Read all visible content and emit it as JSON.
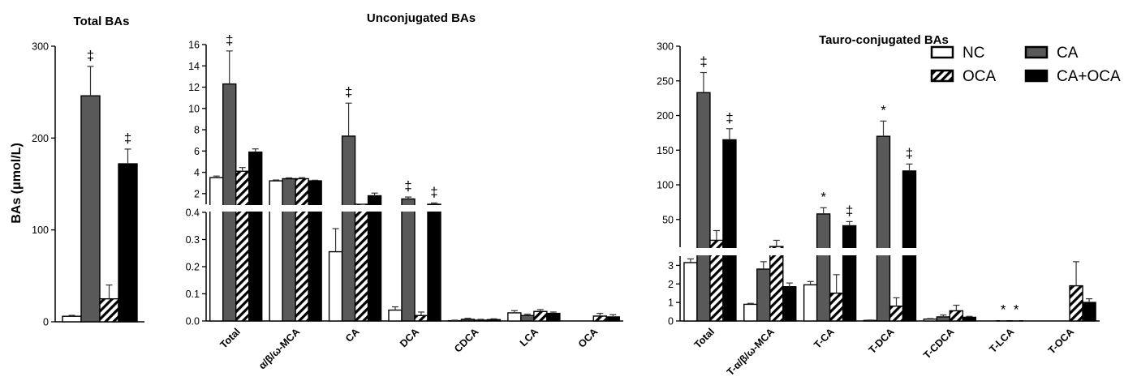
{
  "colors": {
    "NC": "#ffffff",
    "OCA": "hatch",
    "CA": "#595959",
    "CA+OCA": "#000000"
  },
  "legend": {
    "items": [
      "NC",
      "CA",
      "OCA",
      "CA+OCA"
    ]
  },
  "ylabel": "BAs (μmol/L)",
  "chart_data": [
    {
      "type": "bar",
      "title": "Total BAs",
      "ylabel": "BAs (μmol/L)",
      "ylim": [
        0,
        300
      ],
      "yticks": [
        "0",
        "100",
        "200",
        "300"
      ],
      "categories": [
        ""
      ],
      "series": [
        {
          "name": "NC",
          "values": [
            6
          ],
          "errors": [
            1
          ]
        },
        {
          "name": "CA",
          "values": [
            246
          ],
          "errors": [
            32
          ],
          "marks": [
            "‡"
          ]
        },
        {
          "name": "OCA",
          "values": [
            25
          ],
          "errors": [
            15
          ]
        },
        {
          "name": "CA+OCA",
          "values": [
            172
          ],
          "errors": [
            16
          ],
          "marks": [
            "‡"
          ]
        }
      ]
    },
    {
      "type": "bar",
      "title": "Unconjugated BAs",
      "axis_break": {
        "lower_range": [
          0,
          0.4
        ],
        "upper_range": [
          1,
          16
        ]
      },
      "yticks_lower": [
        "0.0",
        "0.1",
        "0.2",
        "0.3",
        "0.4"
      ],
      "yticks_upper": [
        "2",
        "4",
        "6",
        "8",
        "10",
        "12",
        "14",
        "16"
      ],
      "categories": [
        "Total",
        "α/β/ω-MCA",
        "CA",
        "DCA",
        "CDCA",
        "LCA",
        "OCA"
      ],
      "series": [
        {
          "name": "NC",
          "values": [
            3.5,
            3.2,
            0.255,
            0.04,
            0.001,
            0.03,
            0.0
          ],
          "errors": [
            0.15,
            0.08,
            0.085,
            0.012,
            0.002,
            0.008,
            0.0
          ],
          "marks": [
            "",
            "",
            "",
            "",
            "",
            "",
            ""
          ]
        },
        {
          "name": "CA",
          "values": [
            12.3,
            3.4,
            7.4,
            1.5,
            0.006,
            0.02,
            0.0
          ],
          "errors": [
            3.1,
            0.08,
            3.1,
            0.18,
            0.004,
            0.005,
            0.0
          ],
          "marks": [
            "‡",
            "",
            "‡",
            "‡",
            "",
            "",
            ""
          ]
        },
        {
          "name": "OCA",
          "values": [
            4.1,
            3.4,
            0.45,
            0.02,
            0.003,
            0.035,
            0.018
          ],
          "errors": [
            0.35,
            0.1,
            0.3,
            0.013,
            0.003,
            0.007,
            0.01
          ],
          "marks": [
            "",
            "",
            "",
            "",
            "",
            "",
            ""
          ]
        },
        {
          "name": "CA+OCA",
          "values": [
            5.9,
            3.2,
            1.8,
            1.0,
            0.005,
            0.028,
            0.015
          ],
          "errors": [
            0.3,
            0.06,
            0.25,
            0.12,
            0.003,
            0.005,
            0.008
          ],
          "marks": [
            "",
            "",
            "",
            "‡",
            "",
            "",
            ""
          ]
        }
      ]
    },
    {
      "type": "bar",
      "title": "Tauro-conjugated BAs",
      "axis_break": {
        "lower_range": [
          0,
          3.5
        ],
        "upper_range": [
          10,
          300
        ]
      },
      "yticks_lower": [
        "0",
        "1",
        "2",
        "3"
      ],
      "yticks_upper": [
        "50",
        "100",
        "150",
        "200",
        "250",
        "300"
      ],
      "categories": [
        "Total",
        "T-α/β/ω-MCA",
        "T-CA",
        "T-DCA",
        "T-CDCA",
        "T-LCA",
        "T-OCA"
      ],
      "series": [
        {
          "name": "NC",
          "values": [
            3.15,
            0.9,
            1.95,
            0.03,
            0.1,
            0.0,
            0.0
          ],
          "errors": [
            0.2,
            0.05,
            0.18,
            0.02,
            0.03,
            0.0,
            0.0
          ],
          "marks": [
            "",
            "",
            "",
            "",
            "",
            "",
            ""
          ]
        },
        {
          "name": "CA",
          "values": [
            233,
            2.8,
            58,
            170,
            0.22,
            0.01,
            0.0
          ],
          "errors": [
            29,
            0.4,
            9,
            22,
            0.1,
            0.005,
            0.0
          ],
          "marks": [
            "‡",
            "",
            "*",
            "*",
            "",
            "*",
            ""
          ]
        },
        {
          "name": "OCA",
          "values": [
            20,
            11,
            1.5,
            0.8,
            0.55,
            0.008,
            1.9
          ],
          "errors": [
            14,
            9,
            1,
            0.45,
            0.3,
            0.005,
            1.3
          ],
          "marks": [
            "",
            "",
            "",
            "",
            "",
            "*",
            ""
          ]
        },
        {
          "name": "CA+OCA",
          "values": [
            165,
            1.85,
            41,
            120,
            0.2,
            0.0,
            1.0
          ],
          "errors": [
            16,
            0.2,
            6,
            10,
            0.05,
            0.0,
            0.2
          ],
          "marks": [
            "‡",
            "",
            "‡",
            "‡",
            "",
            "",
            ""
          ]
        }
      ]
    }
  ]
}
